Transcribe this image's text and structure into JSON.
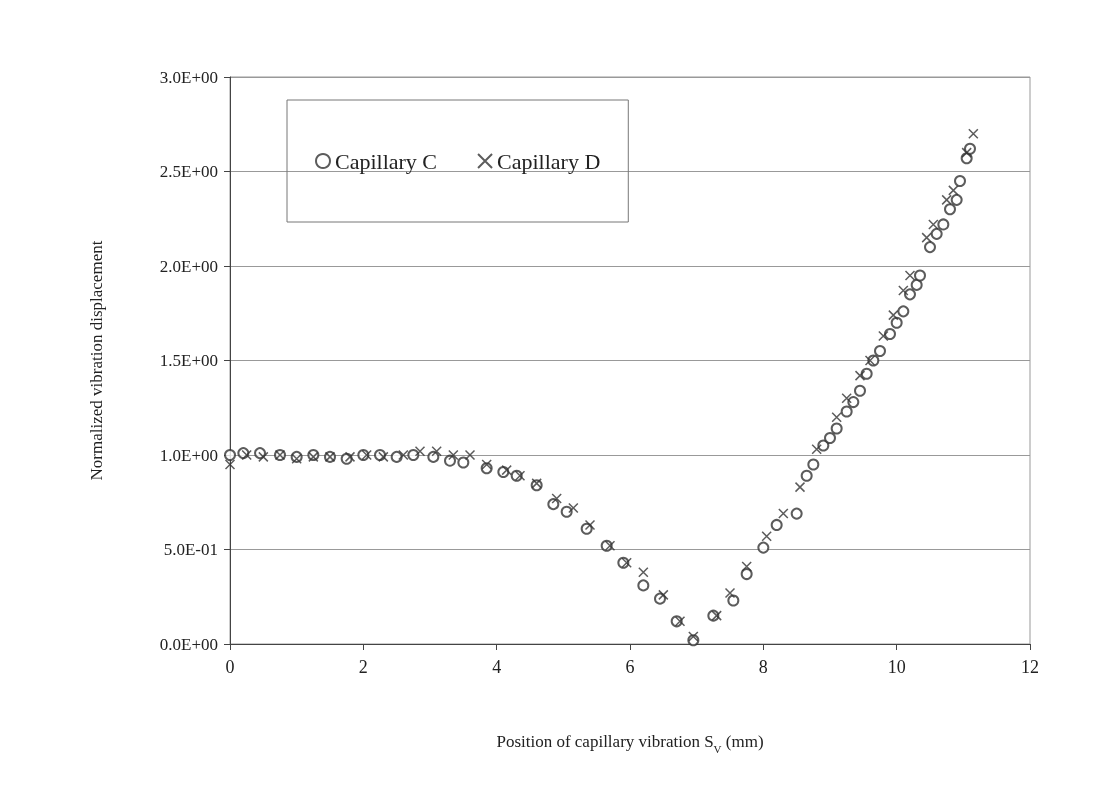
{
  "chart_data": {
    "type": "scatter",
    "xlabel": "Position of capillary vibration S$_{V}$ (mm)",
    "ylabel": "Normalized vibration displacement",
    "xlim": [
      0,
      12
    ],
    "xticks": [
      0,
      2,
      4,
      6,
      8,
      10,
      12
    ],
    "ylim": [
      0,
      3
    ],
    "yticks": [
      {
        "value": 0,
        "label": "0.0E+00"
      },
      {
        "value": 0.5,
        "label": "5.0E-01"
      },
      {
        "value": 1,
        "label": "1.0E+00"
      },
      {
        "value": 1.5,
        "label": "1.5E+00"
      },
      {
        "value": 2,
        "label": "2.0E+00"
      },
      {
        "value": 2.5,
        "label": "2.5E+00"
      },
      {
        "value": 3,
        "label": "3.0E+00"
      }
    ],
    "grid": "y",
    "legend": "top left",
    "series": [
      {
        "name": "Capillary C",
        "color": "#333333",
        "marker": "circle",
        "x": [
          0,
          0.2,
          0.45,
          0.75,
          1.0,
          1.25,
          1.5,
          1.75,
          2.0,
          2.25,
          2.5,
          2.75,
          3.05,
          3.3,
          3.5,
          3.85,
          4.1,
          4.3,
          4.6,
          4.85,
          5.05,
          5.35,
          5.65,
          5.9,
          6.2,
          6.45,
          6.7,
          6.95,
          7.25,
          7.55,
          7.75,
          8.0,
          8.2,
          8.5,
          8.65,
          8.75,
          8.9,
          9.0,
          9.1,
          9.25,
          9.35,
          9.45,
          9.55,
          9.65,
          9.75,
          9.9,
          10.0,
          10.1,
          10.2,
          10.3,
          10.35,
          10.5,
          10.6,
          10.7,
          10.8,
          10.9,
          10.95,
          11.05,
          11.1
        ],
        "values": [
          1.0,
          1.01,
          1.01,
          1.0,
          0.99,
          1.0,
          0.99,
          0.98,
          1.0,
          1.0,
          0.99,
          1.0,
          0.99,
          0.97,
          0.96,
          0.93,
          0.91,
          0.89,
          0.84,
          0.74,
          0.7,
          0.61,
          0.52,
          0.43,
          0.31,
          0.24,
          0.12,
          0.02,
          0.15,
          0.23,
          0.37,
          0.51,
          0.63,
          0.69,
          0.89,
          0.95,
          1.05,
          1.09,
          1.14,
          1.23,
          1.28,
          1.34,
          1.43,
          1.5,
          1.55,
          1.64,
          1.7,
          1.76,
          1.85,
          1.9,
          1.95,
          2.1,
          2.17,
          2.22,
          2.3,
          2.35,
          2.45,
          2.57,
          2.62
        ]
      },
      {
        "name": "Capillary D",
        "color": "#333333",
        "marker": "cross",
        "x": [
          0,
          0.25,
          0.5,
          0.75,
          1.0,
          1.25,
          1.5,
          1.8,
          2.05,
          2.3,
          2.6,
          2.85,
          3.1,
          3.35,
          3.6,
          3.85,
          4.15,
          4.35,
          4.6,
          4.9,
          5.15,
          5.4,
          5.7,
          5.95,
          6.2,
          6.5,
          6.75,
          6.95,
          7.3,
          7.5,
          7.75,
          8.05,
          8.3,
          8.55,
          8.8,
          9.1,
          9.25,
          9.45,
          9.6,
          9.8,
          9.95,
          10.1,
          10.2,
          10.45,
          10.55,
          10.75,
          10.85,
          11.05,
          11.15
        ],
        "values": [
          0.95,
          1.0,
          0.99,
          1.0,
          0.98,
          0.99,
          0.99,
          0.99,
          1.0,
          0.99,
          1.0,
          1.02,
          1.02,
          1.0,
          1.0,
          0.95,
          0.92,
          0.89,
          0.85,
          0.77,
          0.72,
          0.63,
          0.52,
          0.43,
          0.38,
          0.26,
          0.12,
          0.04,
          0.15,
          0.27,
          0.41,
          0.57,
          0.69,
          0.83,
          1.03,
          1.2,
          1.3,
          1.42,
          1.5,
          1.63,
          1.74,
          1.87,
          1.95,
          2.15,
          2.22,
          2.35,
          2.4,
          2.6,
          2.7
        ]
      }
    ]
  }
}
